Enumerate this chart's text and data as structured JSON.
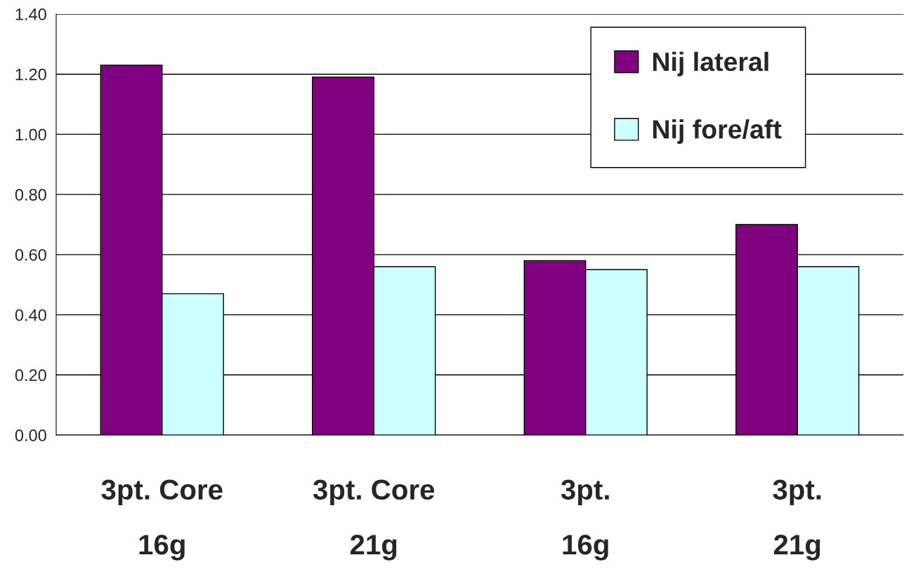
{
  "chart_data": {
    "type": "bar",
    "categories": [
      "3pt. Core\n16g",
      "3pt. Core\n21g",
      "3pt.\n16g",
      "3pt.\n21g"
    ],
    "series": [
      {
        "name": "Nij lateral",
        "color": "#800080",
        "values": [
          1.23,
          1.19,
          0.58,
          0.7
        ]
      },
      {
        "name": "Nij fore/aft",
        "color": "#ccffff",
        "values": [
          0.47,
          0.56,
          0.55,
          0.56
        ]
      }
    ],
    "ylim": [
      0,
      1.4
    ],
    "yticks": [
      {
        "value": 0,
        "label": "0.00"
      },
      {
        "value": 0.2,
        "label": "0.20"
      },
      {
        "value": 0.4,
        "label": "0.40"
      },
      {
        "value": 0.6,
        "label": "0.60"
      },
      {
        "value": 0.8,
        "label": "0.80"
      },
      {
        "value": 1.0,
        "label": "1.00"
      },
      {
        "value": 1.2,
        "label": "1.20"
      },
      {
        "value": 1.4,
        "label": "1.40"
      }
    ],
    "grid": "y",
    "legend": "top right"
  }
}
